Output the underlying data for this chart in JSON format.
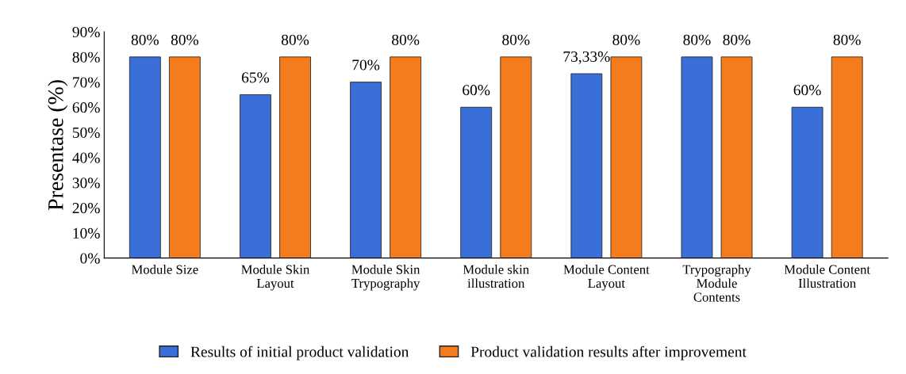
{
  "chart_data": {
    "type": "bar",
    "ylabel": "Presentase (%)",
    "categories": [
      "Module Size",
      "Module Skin\nLayout",
      "Module Skin\nTrypography",
      "Module skin\nillustration",
      "Module Content\nLayout",
      "Trypography\nModule\nContents",
      "Module Content\nIllustration"
    ],
    "series": [
      {
        "name": "Results of initial product validation",
        "color": "#3a6fd8",
        "values": [
          80,
          65,
          70,
          60,
          73.33,
          80,
          60
        ],
        "value_labels": [
          "80%",
          "65%",
          "70%",
          "60%",
          "73,33%",
          "80%",
          "60%"
        ]
      },
      {
        "name": "Product validation results after improvement",
        "color": "#f57c1c",
        "values": [
          80,
          80,
          80,
          80,
          80,
          80,
          80
        ],
        "value_labels": [
          "80%",
          "80%",
          "80%",
          "80%",
          "80%",
          "80%",
          "80%"
        ]
      }
    ],
    "ylim": [
      0,
      90
    ],
    "yticks": [
      {
        "value": 0,
        "label": "0%"
      },
      {
        "value": 10,
        "label": "10%"
      },
      {
        "value": 20,
        "label": "20%"
      },
      {
        "value": 30,
        "label": "30%"
      },
      {
        "value": 40,
        "label": "40%"
      },
      {
        "value": 50,
        "label": "50%"
      },
      {
        "value": 60,
        "label": "60%"
      },
      {
        "value": 70,
        "label": "70%"
      },
      {
        "value": 80,
        "label": "80%"
      },
      {
        "value": 90,
        "label": "90%"
      }
    ],
    "grid": false,
    "legend": "bottom"
  }
}
